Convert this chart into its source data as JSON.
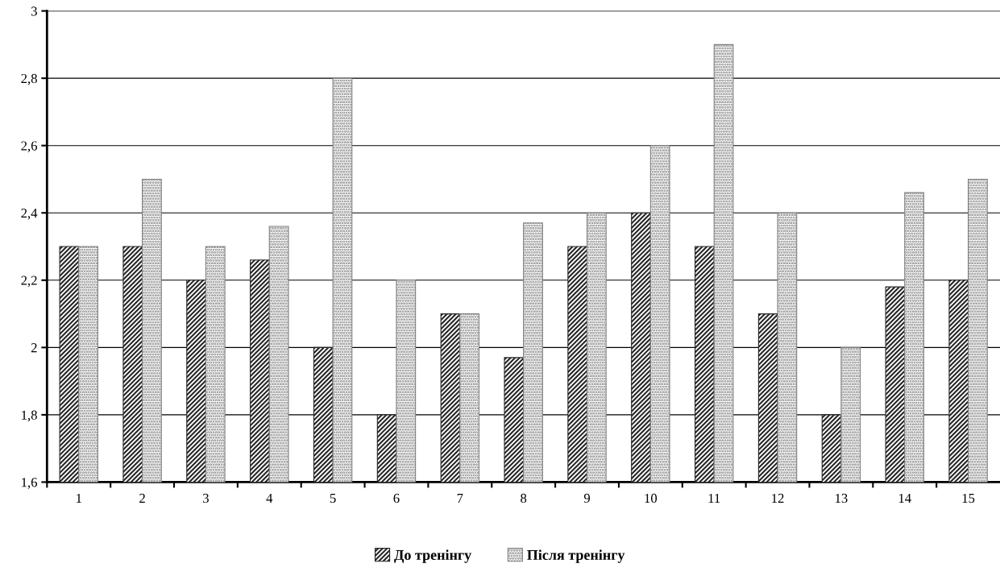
{
  "chart_data": {
    "type": "bar",
    "categories": [
      "1",
      "2",
      "3",
      "4",
      "5",
      "6",
      "7",
      "8",
      "9",
      "10",
      "11",
      "12",
      "13",
      "14",
      "15"
    ],
    "series": [
      {
        "name": "До тренінгу",
        "color": "#262626",
        "values": [
          2.3,
          2.3,
          2.2,
          2.26,
          2.0,
          1.8,
          2.1,
          1.97,
          2.3,
          2.4,
          2.3,
          2.1,
          1.8,
          2.18,
          2.2
        ]
      },
      {
        "name": "Після тренінгу",
        "color": "#808080",
        "values": [
          2.3,
          2.5,
          2.3,
          2.36,
          2.8,
          2.2,
          2.1,
          2.37,
          2.4,
          2.6,
          2.9,
          2.4,
          2.0,
          2.46,
          2.5
        ]
      }
    ],
    "ylim": [
      1.6,
      3
    ],
    "yticks": [
      {
        "value": 1.6,
        "label": "1,6"
      },
      {
        "value": 1.8,
        "label": "1,8"
      },
      2,
      {
        "value": 2.2,
        "label": "2,2"
      },
      {
        "value": 2.4,
        "label": "2,4"
      },
      {
        "value": 2.6,
        "label": "2,6"
      },
      {
        "value": 2.8,
        "label": "2,8"
      },
      3
    ],
    "grid": "y",
    "legend": "bottom"
  }
}
